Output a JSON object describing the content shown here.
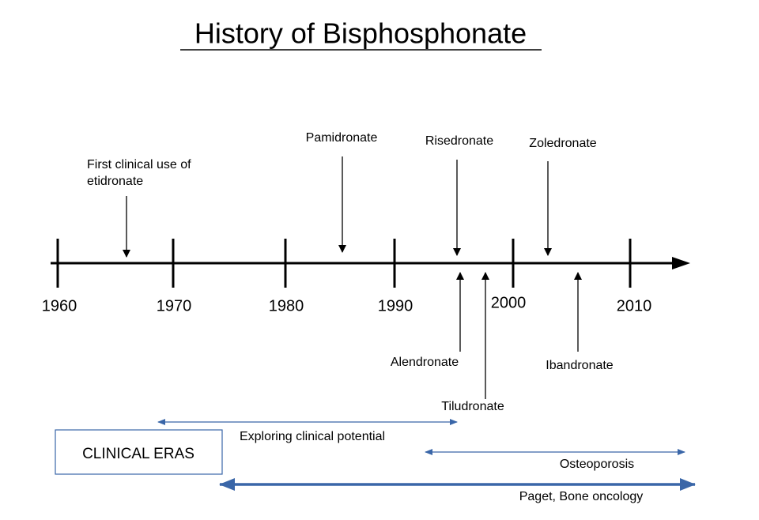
{
  "title": "History of Bisphosphonate",
  "timeline": {
    "years": [
      "1960",
      "1970",
      "1980",
      "1990",
      "2000",
      "2010"
    ]
  },
  "events_above": [
    {
      "label_lines": [
        "First clinical use of",
        "etidronate"
      ]
    },
    {
      "label": "Pamidronate"
    },
    {
      "label": "Risedronate"
    },
    {
      "label": "Zoledronate"
    }
  ],
  "events_below": [
    {
      "label": "Alendronate"
    },
    {
      "label": "Tiludronate"
    },
    {
      "label": "Ibandronate"
    }
  ],
  "clinical_eras": {
    "heading": "CLINICAL ERAS",
    "eras": [
      {
        "label": "Exploring clinical potential"
      },
      {
        "label": "Osteoporosis"
      },
      {
        "label": "Paget, Bone oncology"
      }
    ]
  }
}
